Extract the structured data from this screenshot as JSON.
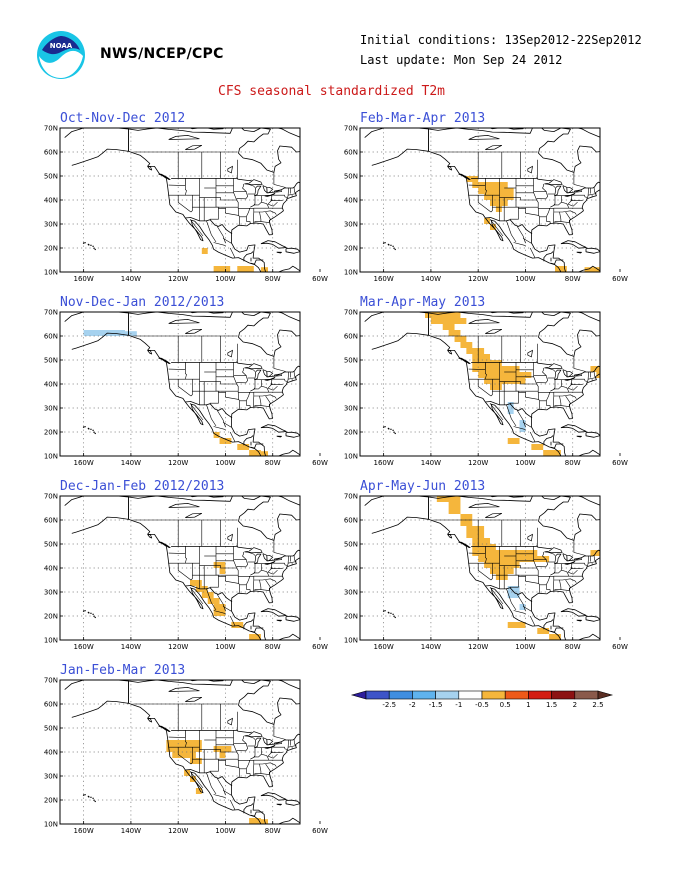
{
  "header": {
    "org": "NWS/NCEP/CPC",
    "initial_conditions": "Initial conditions: 13Sep2012-22Sep2012",
    "last_update": "Last update: Mon Sep 24 2012",
    "main_title": "CFS seasonal standardized T2m",
    "logo_icon": "noaa-logo-icon"
  },
  "axes": {
    "lat_labels": [
      "70N",
      "60N",
      "50N",
      "40N",
      "30N",
      "20N",
      "10N"
    ],
    "lon_labels": [
      "160W",
      "140W",
      "120W",
      "100W",
      "80W",
      "60W"
    ]
  },
  "panels": [
    {
      "title": "Oct-Nov-Dec 2012"
    },
    {
      "title": "Feb-Mar-Apr 2013"
    },
    {
      "title": "Nov-Dec-Jan 2012/2013"
    },
    {
      "title": "Mar-Apr-May 2013"
    },
    {
      "title": "Dec-Jan-Feb 2012/2013"
    },
    {
      "title": "Apr-May-Jun 2013"
    },
    {
      "title": "Jan-Feb-Mar 2013"
    }
  ],
  "colors": {
    "warm": "#f5b63c",
    "cool": "#a6d2ef",
    "outline": "#000000",
    "grid": "#777777"
  },
  "legend": {
    "labels": [
      "-2.5",
      "-2",
      "-1.5",
      "-1",
      "-0.5",
      "0.5",
      "1",
      "1.5",
      "2",
      "2.5"
    ],
    "colors": [
      "#2d1d9c",
      "#3d54c8",
      "#3f8ee0",
      "#5fb3ee",
      "#a6d2ef",
      "#ffffff",
      "#f5b63c",
      "#ee5a1a",
      "#d31e12",
      "#8c1212",
      "#8a5a4b",
      "#5a2e23"
    ]
  }
}
